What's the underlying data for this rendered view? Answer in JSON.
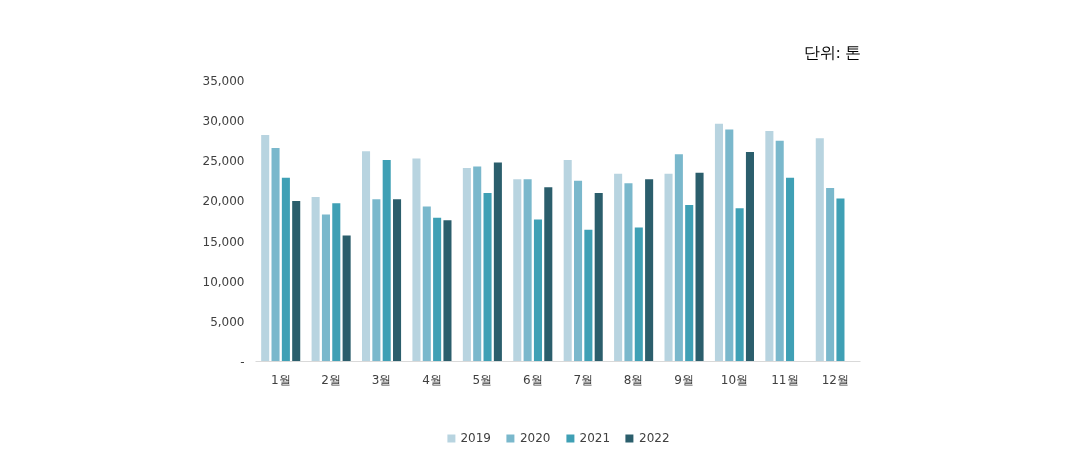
{
  "chart_data": {
    "type": "bar",
    "categories": [
      "1월",
      "2월",
      "3월",
      "4월",
      "5월",
      "6월",
      "7월",
      "8월",
      "9월",
      "10월",
      "11월",
      "12월"
    ],
    "series": [
      {
        "name": "2019",
        "color": "#b8d4e0",
        "values": [
          28200,
          20500,
          26200,
          25300,
          24100,
          22700,
          25100,
          23400,
          23400,
          29600,
          28700,
          27800
        ]
      },
      {
        "name": "2020",
        "color": "#7ab8cc",
        "values": [
          26600,
          18300,
          20200,
          19300,
          24300,
          22700,
          22500,
          22200,
          25800,
          28900,
          27500,
          21600
        ]
      },
      {
        "name": "2021",
        "color": "#3fa0b5",
        "values": [
          22900,
          19700,
          25100,
          17900,
          21000,
          17700,
          16400,
          16700,
          19500,
          19100,
          22900,
          20300
        ]
      },
      {
        "name": "2022",
        "color": "#2b5e6c",
        "values": [
          20000,
          15700,
          20200,
          17600,
          24800,
          21700,
          21000,
          22700,
          23500,
          26100,
          null,
          null
        ]
      }
    ],
    "ylim": [
      0,
      35000
    ],
    "yticks": [
      {
        "value": 0,
        "label": "-"
      },
      {
        "value": 5000,
        "label": "5,000"
      },
      {
        "value": 10000,
        "label": "10,000"
      },
      {
        "value": 15000,
        "label": "15,000"
      },
      {
        "value": 20000,
        "label": "20,000"
      },
      {
        "value": 25000,
        "label": "25,000"
      },
      {
        "value": 30000,
        "label": "30,000"
      },
      {
        "value": 35000,
        "label": "35,000"
      }
    ],
    "grid": false,
    "legend": "bottom",
    "annotations": [
      "단위: 톤"
    ]
  }
}
